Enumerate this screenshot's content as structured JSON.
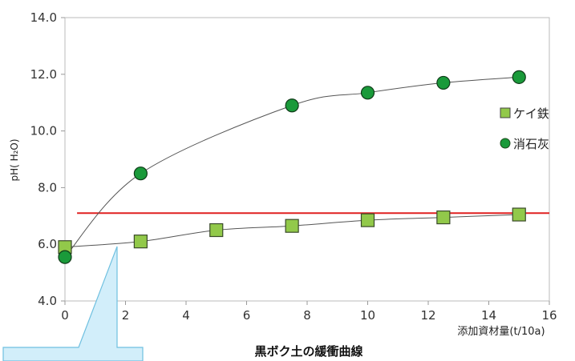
{
  "chart_data": {
    "type": "scatter",
    "title": "黒ボク土の緩衝曲線",
    "xlabel": "添加資材量(t/10a)",
    "ylabel": "pH( H₂O)",
    "xlim": [
      0,
      16
    ],
    "ylim": [
      4.0,
      14.0
    ],
    "x_ticks": [
      "0",
      "2",
      "4",
      "6",
      "8",
      "10",
      "12",
      "14",
      "16"
    ],
    "y_ticks": [
      "4.0",
      "6.0",
      "8.0",
      "10.0",
      "12.0",
      "14.0"
    ],
    "grid": false,
    "legend_position": "right",
    "reference_line": {
      "y": 7.1,
      "color": "#e02020"
    },
    "series": [
      {
        "name": "ケイ鉄",
        "marker": "square",
        "color": "#92c94a",
        "x": [
          0,
          2.5,
          5,
          7.5,
          10,
          12.5,
          15
        ],
        "y": [
          5.9,
          6.1,
          6.5,
          6.65,
          6.85,
          6.95,
          7.05
        ]
      },
      {
        "name": "消石灰",
        "marker": "circle",
        "color": "#1a9a3a",
        "x": [
          0,
          2.5,
          7.5,
          10,
          12.5,
          15
        ],
        "y": [
          5.55,
          8.5,
          10.9,
          11.35,
          11.7,
          11.9
        ]
      }
    ]
  }
}
